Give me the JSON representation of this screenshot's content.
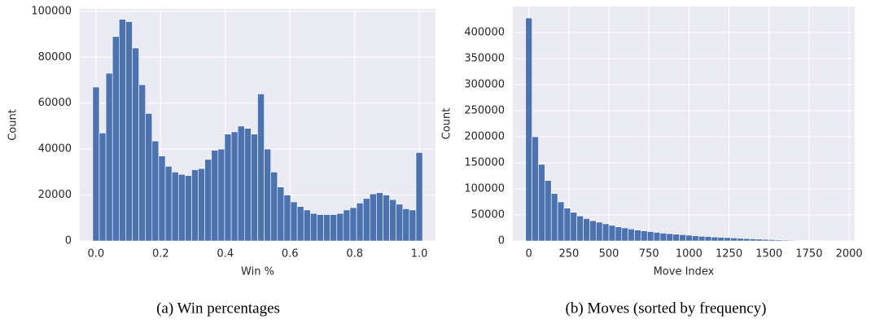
{
  "chart_data": [
    {
      "type": "histogram",
      "caption": "(a) Win percentages",
      "xlabel": "Win %",
      "ylabel": "Count",
      "color": "#4c72b0",
      "grid": true,
      "bins": [
        -0.01,
        0.0104,
        0.0308,
        0.0512,
        0.0716,
        0.092,
        0.1124,
        0.1328,
        0.1532,
        0.1736,
        0.194,
        0.2144,
        0.2348,
        0.2552,
        0.2756,
        0.296,
        0.3164,
        0.3368,
        0.3572,
        0.3776,
        0.398,
        0.4184,
        0.4388,
        0.4592,
        0.4796,
        0.5,
        0.5204,
        0.5408,
        0.5612,
        0.5816,
        0.602,
        0.6224,
        0.6428,
        0.6632,
        0.6836,
        0.704,
        0.7244,
        0.7448,
        0.7652,
        0.7856,
        0.806,
        0.8264,
        0.8468,
        0.8672,
        0.8876,
        0.908,
        0.9284,
        0.9488,
        0.9692,
        0.9896,
        1.01
      ],
      "values": [
        67000,
        47000,
        73000,
        89000,
        96500,
        95500,
        84000,
        68000,
        55500,
        43500,
        37000,
        32500,
        30000,
        29000,
        28500,
        31000,
        31500,
        35500,
        39500,
        40000,
        46500,
        47500,
        50000,
        49000,
        46500,
        64000,
        40000,
        30000,
        23500,
        20000,
        17000,
        15000,
        13500,
        12000,
        11500,
        11500,
        11500,
        12000,
        13500,
        14500,
        16500,
        18500,
        20500,
        21000,
        20000,
        18000,
        16000,
        14000,
        13500,
        38500
      ],
      "xlim": [
        -0.05,
        1.05
      ],
      "ylim": [
        0,
        101000
      ],
      "xticks": [
        {
          "value": 0,
          "label": "0.0"
        },
        0.2,
        0.4,
        0.6,
        0.8,
        {
          "value": 1,
          "label": "1.0"
        }
      ],
      "yticks": [
        0,
        20000,
        40000,
        60000,
        80000,
        100000
      ]
    },
    {
      "type": "histogram",
      "caption": "(b) Moves (sorted by frequency)",
      "xlabel": "Move Index",
      "ylabel": "Count",
      "color": "#4c72b0",
      "grid": true,
      "bins": [
        -20,
        20,
        60,
        100,
        140,
        180,
        220,
        260,
        300,
        340,
        380,
        420,
        460,
        500,
        540,
        580,
        620,
        660,
        700,
        740,
        780,
        820,
        860,
        900,
        940,
        980,
        1020,
        1060,
        1100,
        1140,
        1180,
        1220,
        1260,
        1300,
        1340,
        1380,
        1420,
        1460,
        1500,
        1540,
        1580,
        1620,
        1660,
        1700,
        1740,
        1780,
        1820,
        1860,
        1900,
        1940,
        1980
      ],
      "values": [
        428000,
        200000,
        147000,
        116000,
        91000,
        75000,
        63000,
        55000,
        48000,
        43000,
        39000,
        36000,
        33000,
        30000,
        27000,
        25000,
        23000,
        21000,
        19500,
        18000,
        16500,
        15000,
        14000,
        13000,
        12000,
        11000,
        10000,
        9000,
        8500,
        7500,
        7000,
        6500,
        5800,
        5200,
        4600,
        4000,
        3500,
        3000,
        2500,
        2000,
        1600,
        1300,
        1000,
        800,
        600,
        500,
        400,
        300,
        200,
        100
      ],
      "xlim": [
        -100,
        2035
      ],
      "ylim": [
        0,
        450000
      ],
      "xticks": [
        0,
        250,
        500,
        750,
        1000,
        1250,
        1500,
        1750,
        2000
      ],
      "yticks": [
        0,
        50000,
        100000,
        150000,
        200000,
        250000,
        300000,
        350000,
        400000
      ]
    }
  ]
}
